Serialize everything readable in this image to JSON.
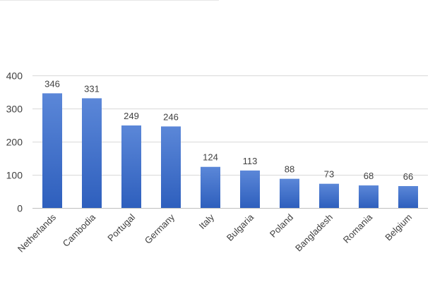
{
  "chart_data": {
    "type": "bar",
    "categories": [
      "Netherlands",
      "Cambodia",
      "Portugal",
      "Germany",
      "Italy",
      "Bulgaria",
      "Poland",
      "Bangladesh",
      "Romania",
      "Belgium"
    ],
    "values": [
      346,
      331,
      249,
      246,
      124,
      113,
      88,
      73,
      68,
      66
    ],
    "data_labels": [
      "346",
      "331",
      "249",
      "246",
      "124",
      "113",
      "88",
      "73",
      "68",
      "66"
    ],
    "yticks": [
      0,
      100,
      200,
      300,
      400
    ],
    "ylim": [
      0,
      400
    ],
    "grid": true,
    "colors": {
      "bar_top": "#5b87d8",
      "bar_bottom": "#2e5fbd"
    }
  }
}
